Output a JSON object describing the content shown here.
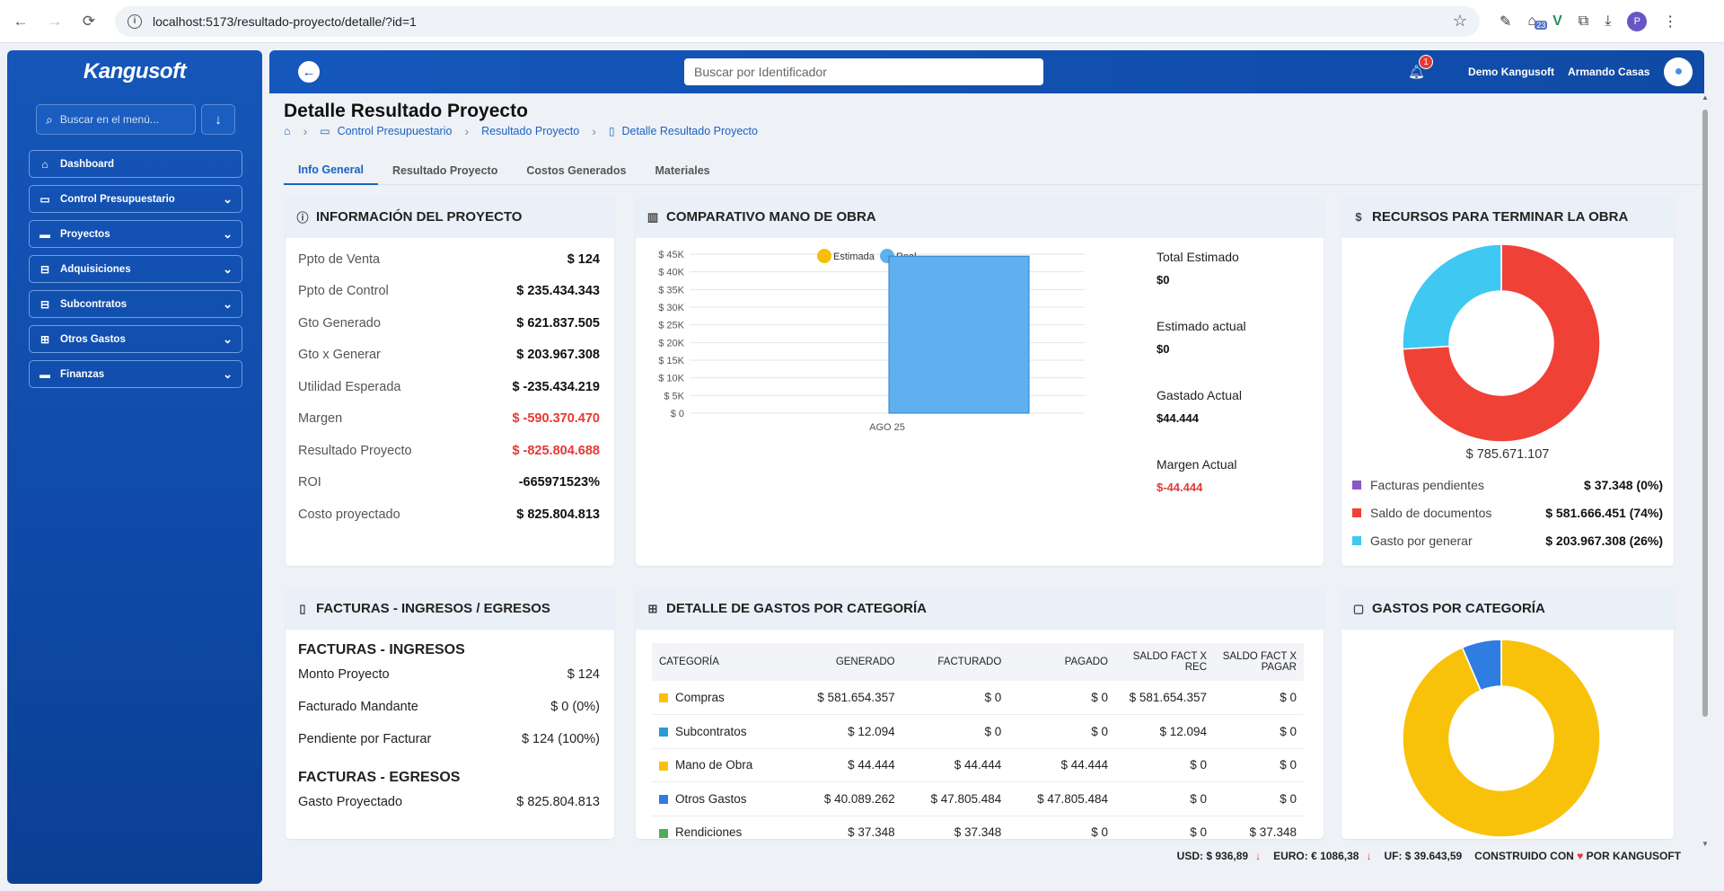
{
  "browser": {
    "url": "localhost:5173/resultado-proyecto/detalle/?id=1",
    "ext_badge": "23",
    "profile_initial": "P"
  },
  "sidebar": {
    "logo": "Kangusoft",
    "search_placeholder": "Buscar en el menú...",
    "items": [
      {
        "label": "Dashboard",
        "icon": "home-icon"
      },
      {
        "label": "Control Presupuestario",
        "icon": "monitor-icon"
      },
      {
        "label": "Proyectos",
        "icon": "folder-icon"
      },
      {
        "label": "Adquisiciones",
        "icon": "tree-icon"
      },
      {
        "label": "Subcontratos",
        "icon": "tree-icon"
      },
      {
        "label": "Otros Gastos",
        "icon": "money-icon"
      },
      {
        "label": "Finanzas",
        "icon": "folder-icon"
      }
    ]
  },
  "topbar": {
    "search_placeholder": "Buscar por Identificador",
    "notification_count": "1",
    "company": "Demo Kangusoft",
    "user": "Armando Casas"
  },
  "page": {
    "title": "Detalle Resultado Proyecto",
    "breadcrumb": [
      "Control Presupuestario",
      "Resultado Proyecto",
      "Detalle Resultado Proyecto"
    ],
    "tabs": [
      "Info General",
      "Resultado Proyecto",
      "Costos Generados",
      "Materiales"
    ]
  },
  "info_proyecto": {
    "title": "INFORMACIÓN DEL PROYECTO",
    "rows": [
      {
        "label": "Ppto de Venta",
        "value": "$ 124"
      },
      {
        "label": "Ppto de Control",
        "value": "$ 235.434.343"
      },
      {
        "label": "Gto Generado",
        "value": "$ 621.837.505"
      },
      {
        "label": "Gto x Generar",
        "value": "$ 203.967.308"
      },
      {
        "label": "Utilidad Esperada",
        "value": "$ -235.434.219"
      },
      {
        "label": "Margen",
        "value": "$ -590.370.470"
      },
      {
        "label": "Resultado Proyecto",
        "value": "$ -825.804.688"
      },
      {
        "label": "ROI",
        "value": "-665971523%"
      },
      {
        "label": "Costo proyectado",
        "value": "$ 825.804.813"
      }
    ]
  },
  "comparativo": {
    "title": "COMPARATIVO MANO DE OBRA",
    "stats": [
      {
        "label": "Total Estimado",
        "value": "$0"
      },
      {
        "label": "Estimado actual",
        "value": "$0"
      },
      {
        "label": "Gastado Actual",
        "value": "$44.444"
      },
      {
        "label": "Margen Actual",
        "value": "$-44.444"
      }
    ]
  },
  "chart_data": [
    {
      "type": "bar",
      "categories": [
        "AGO 25"
      ],
      "series": [
        {
          "name": "Estimada",
          "values": [
            0
          ],
          "color": "#f5bf0c"
        },
        {
          "name": "Real",
          "values": [
            44444
          ],
          "color": "#5eb0ef"
        }
      ],
      "ylim": [
        0,
        45000
      ],
      "yticks": [
        "$ 0",
        "$ 5K",
        "$ 10K",
        "$ 15K",
        "$ 20K",
        "$ 25K",
        "$ 30K",
        "$ 35K",
        "$ 40K",
        "$ 45K"
      ],
      "legend": "top",
      "grid": true
    },
    {
      "type": "pie",
      "labels": [
        "Facturas pendientes",
        "Saldo de documentos",
        "Gasto por generar"
      ],
      "values": [
        37348,
        581666451,
        203967308
      ],
      "colors": [
        "#8a55c9",
        "#ef4136",
        "#3fc8f2"
      ]
    },
    {
      "type": "pie",
      "labels": [
        "Compras",
        "Subcontratos",
        "Mano de Obra",
        "Otros Gastos",
        "Rendiciones"
      ],
      "values": [
        581654357,
        12094,
        44444,
        40089262,
        37348
      ],
      "colors": [
        "#f9c20a",
        "#2a9ad6",
        "#f9c20a",
        "#2f7de1",
        "#4fae58"
      ]
    }
  ],
  "recursos": {
    "title": "RECURSOS PARA TERMINAR LA OBRA",
    "total": "$ 785.671.107",
    "legend": [
      {
        "label": "Facturas pendientes",
        "value": "$ 37.348 (0%)",
        "color": "#8a55c9"
      },
      {
        "label": "Saldo de documentos",
        "value": "$ 581.666.451 (74%)",
        "color": "#ef4136"
      },
      {
        "label": "Gasto por generar",
        "value": "$ 203.967.308 (26%)",
        "color": "#3fc8f2"
      }
    ]
  },
  "facturas": {
    "title": "FACTURAS - INGRESOS / EGRESOS",
    "ingresos_title": "FACTURAS - INGRESOS",
    "ingresos": [
      {
        "label": "Monto Proyecto",
        "value": "$ 124"
      },
      {
        "label": "Facturado Mandante",
        "value": "$ 0 (0%)"
      },
      {
        "label": "Pendiente por Facturar",
        "value": "$ 124 (100%)"
      }
    ],
    "egresos_title": "FACTURAS - EGRESOS",
    "egresos": [
      {
        "label": "Gasto Proyectado",
        "value": "$ 825.804.813"
      }
    ]
  },
  "gastos_detalle": {
    "title": "DETALLE DE GASTOS POR CATEGORÍA",
    "headers": [
      "CATEGORÍA",
      "GENERADO",
      "FACTURADO",
      "PAGADO",
      "SALDO FACT X REC",
      "SALDO FACT X PAGAR"
    ],
    "rows": [
      {
        "cat": "Compras",
        "color": "#f9c20a",
        "vals": [
          "$ 581.654.357",
          "$ 0",
          "$ 0",
          "$ 581.654.357",
          "$ 0"
        ]
      },
      {
        "cat": "Subcontratos",
        "color": "#2a9ad6",
        "vals": [
          "$ 12.094",
          "$ 0",
          "$ 0",
          "$ 12.094",
          "$ 0"
        ]
      },
      {
        "cat": "Mano de Obra",
        "color": "#f9c20a",
        "vals": [
          "$ 44.444",
          "$ 44.444",
          "$ 44.444",
          "$ 0",
          "$ 0"
        ]
      },
      {
        "cat": "Otros Gastos",
        "color": "#2f7de1",
        "vals": [
          "$ 40.089.262",
          "$ 47.805.484",
          "$ 47.805.484",
          "$ 0",
          "$ 0"
        ]
      },
      {
        "cat": "Rendiciones",
        "color": "#4fae58",
        "vals": [
          "$ 37.348",
          "$ 37.348",
          "$ 0",
          "$ 0",
          "$ 37.348"
        ]
      }
    ]
  },
  "gastos_cat": {
    "title": "GASTOS POR CATEGORÍA"
  },
  "footer": {
    "usd": "USD: $ 936,89",
    "euro": "EURO: € 1086,38",
    "uf": "UF: $ 39.643,59",
    "built_prefix": "CONSTRUIDO CON",
    "built_suffix": "POR KANGUSOFT"
  }
}
